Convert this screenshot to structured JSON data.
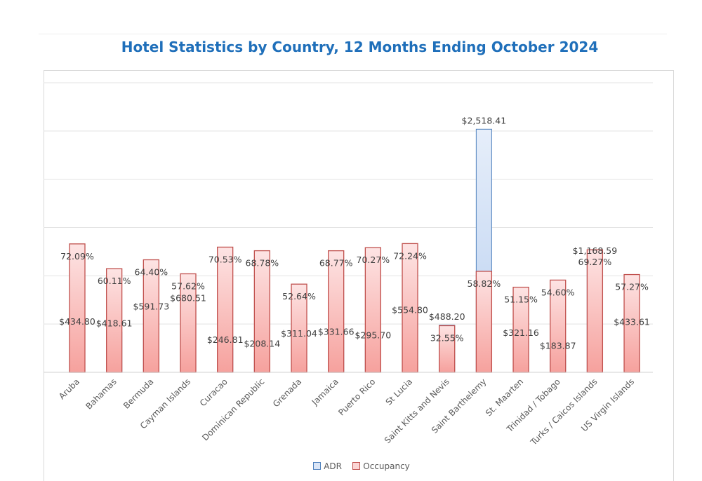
{
  "chart_data": {
    "type": "bar",
    "title": "Hotel Statistics by Country, 12 Months Ending October 2024",
    "categories": [
      "Aruba",
      "Bahamas",
      "Bermuda",
      "Cayman Islands",
      "Curacao",
      "Dominican Republic",
      "Grenada",
      "Jamaica",
      "Puerto Rico",
      "St Lucia",
      "Saint Kitts and Nevis",
      "Saint Barthelemy",
      "St. Maarten",
      "Trinidad / Tobago",
      "Turks / Caicos Islands",
      "US Virgin Islands"
    ],
    "series": [
      {
        "name": "ADR",
        "color": "#4f81bd",
        "axis": "primary",
        "values": [
          434.8,
          418.61,
          591.73,
          680.51,
          246.81,
          208.14,
          311.04,
          331.66,
          295.7,
          554.8,
          488.2,
          2518.41,
          321.16,
          183.87,
          1168.59,
          433.61
        ],
        "labels": [
          "$434.80",
          "$418.61",
          "$591.73",
          "$680.51",
          "$246.81",
          "$208.14",
          "$311.04",
          "$331.66",
          "$295.70",
          "$554.80",
          "$488.20",
          "$2,518.41",
          "$321.16",
          "$183.87",
          "$1,168.59",
          "$433.61"
        ]
      },
      {
        "name": "Occupancy",
        "color": "#c0504d",
        "axis": "secondary",
        "values": [
          72.09,
          60.11,
          64.4,
          57.62,
          70.53,
          68.78,
          52.64,
          68.77,
          70.27,
          72.24,
          32.55,
          58.82,
          51.15,
          54.6,
          69.27,
          57.27
        ],
        "labels": [
          "72.09%",
          "60.11%",
          "64.40%",
          "57.62%",
          "70.53%",
          "68.78%",
          "52.64%",
          "68.77%",
          "70.27%",
          "72.24%",
          "32.55%",
          "58.82%",
          "51.15%",
          "54.60%",
          "69.27%",
          "57.27%"
        ]
      }
    ],
    "ylim": [
      0,
      3000
    ],
    "y2lim": [
      10,
      150
    ],
    "grid": true,
    "legend": "bottom",
    "xlabel": "",
    "ylabel": ""
  }
}
